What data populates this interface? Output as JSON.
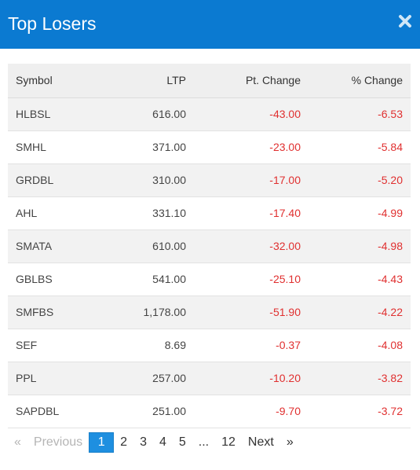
{
  "modal": {
    "title": "Top Losers",
    "accent_color": "#0b7ad1",
    "close_icon": "close-icon"
  },
  "table": {
    "headers": {
      "symbol": "Symbol",
      "ltp": "LTP",
      "pt_change": "Pt. Change",
      "pct_change": "% Change"
    },
    "negative_color": "#e03030",
    "rows": [
      {
        "symbol": "HLBSL",
        "ltp": "616.00",
        "pt_change": "-43.00",
        "pct_change": "-6.53"
      },
      {
        "symbol": "SMHL",
        "ltp": "371.00",
        "pt_change": "-23.00",
        "pct_change": "-5.84"
      },
      {
        "symbol": "GRDBL",
        "ltp": "310.00",
        "pt_change": "-17.00",
        "pct_change": "-5.20"
      },
      {
        "symbol": "AHL",
        "ltp": "331.10",
        "pt_change": "-17.40",
        "pct_change": "-4.99"
      },
      {
        "symbol": "SMATA",
        "ltp": "610.00",
        "pt_change": "-32.00",
        "pct_change": "-4.98"
      },
      {
        "symbol": "GBLBS",
        "ltp": "541.00",
        "pt_change": "-25.10",
        "pct_change": "-4.43"
      },
      {
        "symbol": "SMFBS",
        "ltp": "1,178.00",
        "pt_change": "-51.90",
        "pct_change": "-4.22"
      },
      {
        "symbol": "SEF",
        "ltp": "8.69",
        "pt_change": "-0.37",
        "pct_change": "-4.08"
      },
      {
        "symbol": "PPL",
        "ltp": "257.00",
        "pt_change": "-10.20",
        "pct_change": "-3.82"
      },
      {
        "symbol": "SAPDBL",
        "ltp": "251.00",
        "pt_change": "-9.70",
        "pct_change": "-3.72"
      }
    ]
  },
  "pagination": {
    "first": "«",
    "previous": "Previous",
    "pages": [
      "1",
      "2",
      "3",
      "4",
      "5"
    ],
    "ellipsis": "...",
    "last_page": "12",
    "next": "Next",
    "last": "»",
    "active_page": "1",
    "active_color": "#1e8fe0"
  }
}
